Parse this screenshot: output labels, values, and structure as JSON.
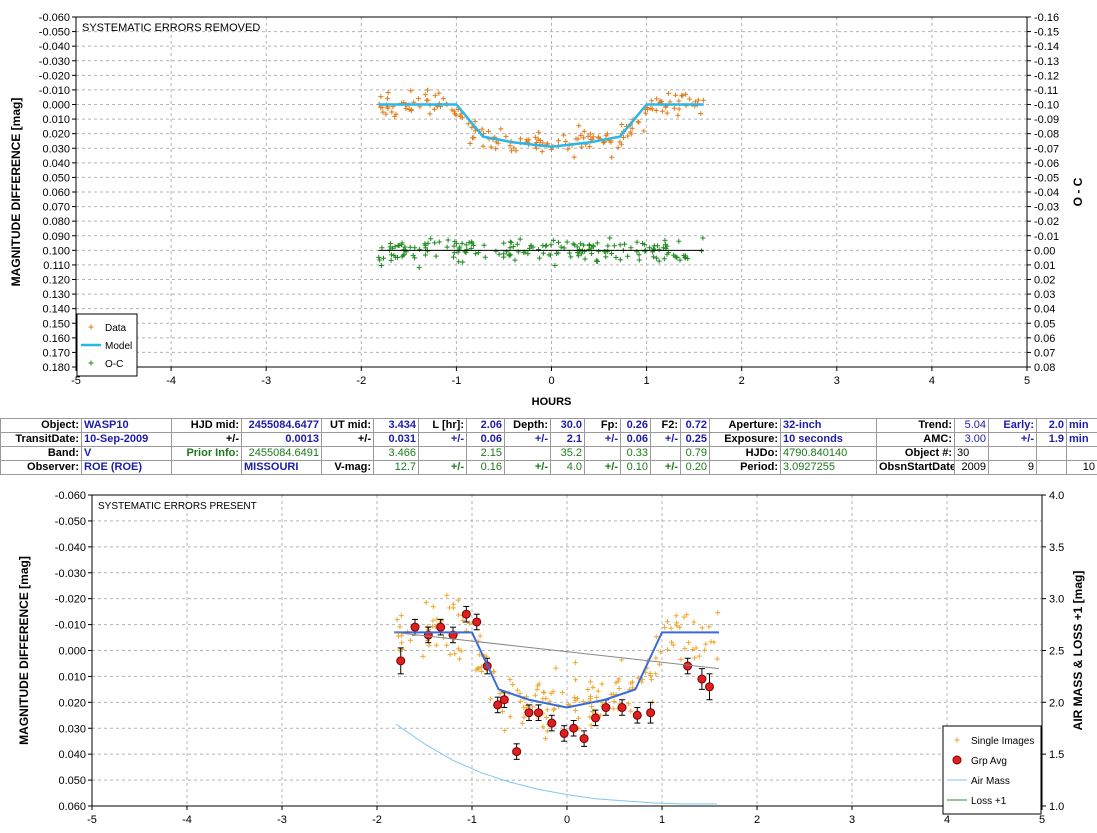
{
  "table": {
    "rows": [
      [
        {
          "t": "Object:",
          "c": "lbl"
        },
        {
          "t": "WASP10",
          "c": "blue bold"
        },
        {
          "t": "HJD mid:",
          "c": "lbl"
        },
        {
          "t": "2455084.6477",
          "c": "blue bold r"
        },
        {
          "t": "UT mid:",
          "c": "lbl"
        },
        {
          "t": "3.434",
          "c": "blue bold r"
        },
        {
          "t": "L [hr]:",
          "c": "lbl"
        },
        {
          "t": "2.06",
          "c": "blue bold r"
        },
        {
          "t": "Depth:",
          "c": "lbl"
        },
        {
          "t": "30.0",
          "c": "blue bold r"
        },
        {
          "t": "Fp:",
          "c": "lbl"
        },
        {
          "t": "0.26",
          "c": "blue bold r"
        },
        {
          "t": "F2:",
          "c": "lbl"
        },
        {
          "t": "0.72",
          "c": "blue bold r"
        },
        {
          "t": "Aperture:",
          "c": "lbl"
        },
        {
          "t": "32-inch",
          "c": "blue bold"
        },
        {
          "t": "Trend:",
          "c": "lbl"
        },
        {
          "t": "5.04",
          "c": "blue r"
        },
        {
          "t": "Early:",
          "c": "lbl blue"
        },
        {
          "t": "2.0",
          "c": "blue bold r"
        },
        {
          "t": "min",
          "c": "blue bold"
        }
      ],
      [
        {
          "t": "TransitDate:",
          "c": "lbl"
        },
        {
          "t": "10-Sep-2009",
          "c": "blue bold"
        },
        {
          "t": "+/-",
          "c": "lbl"
        },
        {
          "t": "0.0013",
          "c": "blue bold r"
        },
        {
          "t": "+/-",
          "c": "lbl"
        },
        {
          "t": "0.031",
          "c": "blue bold r"
        },
        {
          "t": "+/-",
          "c": "lbl blue"
        },
        {
          "t": "0.06",
          "c": "blue bold r"
        },
        {
          "t": "+/-",
          "c": "lbl blue"
        },
        {
          "t": "2.1",
          "c": "blue bold r"
        },
        {
          "t": "+/-",
          "c": "lbl blue"
        },
        {
          "t": "0.06",
          "c": "blue bold r"
        },
        {
          "t": "+/-",
          "c": "lbl blue"
        },
        {
          "t": "0.25",
          "c": "blue bold r"
        },
        {
          "t": "Exposure:",
          "c": "lbl"
        },
        {
          "t": "10 seconds",
          "c": "blue bold"
        },
        {
          "t": "AMC:",
          "c": "lbl"
        },
        {
          "t": "3.00",
          "c": "blue r"
        },
        {
          "t": "+/-",
          "c": "lbl blue"
        },
        {
          "t": "1.9",
          "c": "blue bold r"
        },
        {
          "t": "min",
          "c": "blue bold"
        }
      ],
      [
        {
          "t": "Band:",
          "c": "lbl"
        },
        {
          "t": "V",
          "c": "blue bold"
        },
        {
          "t": "Prior Info:",
          "c": "lbl green"
        },
        {
          "t": "2455084.6491",
          "c": "green r"
        },
        {
          "t": "",
          "c": ""
        },
        {
          "t": "3.466",
          "c": "green r"
        },
        {
          "t": "",
          "c": ""
        },
        {
          "t": "2.15",
          "c": "green r"
        },
        {
          "t": "",
          "c": ""
        },
        {
          "t": "35.2",
          "c": "green r"
        },
        {
          "t": "",
          "c": ""
        },
        {
          "t": "0.33",
          "c": "green r"
        },
        {
          "t": "",
          "c": ""
        },
        {
          "t": "0.79",
          "c": "green r"
        },
        {
          "t": "HJDo:",
          "c": "lbl"
        },
        {
          "t": "4790.840140",
          "c": "green"
        },
        {
          "t": "Object #:",
          "c": "lbl"
        },
        {
          "t": "30",
          "c": ""
        },
        {
          "t": "",
          "c": ""
        },
        {
          "t": "",
          "c": ""
        },
        {
          "t": "",
          "c": ""
        }
      ],
      [
        {
          "t": "Observer:",
          "c": "lbl"
        },
        {
          "t": "ROE (ROE)",
          "c": "blue bold"
        },
        {
          "t": "",
          "c": ""
        },
        {
          "t": "MISSOURI",
          "c": "blue bold"
        },
        {
          "t": "V-mag:",
          "c": "lbl"
        },
        {
          "t": "12.7",
          "c": "green r"
        },
        {
          "t": "+/-",
          "c": "lbl green"
        },
        {
          "t": "0.16",
          "c": "green r"
        },
        {
          "t": "+/-",
          "c": "lbl green"
        },
        {
          "t": "4.0",
          "c": "green r"
        },
        {
          "t": "+/-",
          "c": "lbl green"
        },
        {
          "t": "0.10",
          "c": "green r"
        },
        {
          "t": "+/-",
          "c": "lbl green"
        },
        {
          "t": "0.20",
          "c": "green r"
        },
        {
          "t": "Period:",
          "c": "lbl"
        },
        {
          "t": "3.0927255",
          "c": "green"
        },
        {
          "t": "ObsnStartDate:",
          "c": "lbl"
        },
        {
          "t": "2009",
          "c": "r"
        },
        {
          "t": "9",
          "c": "r"
        },
        {
          "t": "",
          "c": ""
        },
        {
          "t": "10",
          "c": "r"
        }
      ]
    ]
  },
  "chart_data": [
    {
      "type": "scatter",
      "title": "SYSTEMATIC ERRORS REMOVED",
      "xlabel": "HOURS",
      "ylabel": "MAGNITUDE DIFFERENCE [mag]",
      "y2label": "O - C",
      "xlim": [
        -5,
        5
      ],
      "ylim": [
        -0.06,
        0.18
      ],
      "y_inverted": true,
      "y2lim": [
        -0.16,
        0.08
      ],
      "xticks": [
        "-5",
        "-4",
        "-3",
        "-2",
        "-1",
        "0",
        "1",
        "2",
        "3",
        "4",
        "5"
      ],
      "yticks": [
        "-0.060",
        "-0.050",
        "-0.040",
        "-0.030",
        "-0.020",
        "-0.010",
        "0.000",
        "0.010",
        "0.020",
        "0.030",
        "0.040",
        "0.050",
        "0.060",
        "0.070",
        "0.080",
        "0.090",
        "0.100",
        "0.110",
        "0.120",
        "0.130",
        "0.140",
        "0.150",
        "0.160",
        "0.170",
        "0.180"
      ],
      "y2ticks": [
        "-0.16",
        "-0.15",
        "-0.14",
        "-0.13",
        "-0.12",
        "-0.11",
        "-0.10",
        "-0.09",
        "-0.08",
        "-0.07",
        "-0.06",
        "-0.05",
        "-0.04",
        "-0.03",
        "-0.02",
        "-0.01",
        "0.00",
        "0.01",
        "0.02",
        "0.03",
        "0.04",
        "0.05",
        "0.06",
        "0.07",
        "0.08"
      ],
      "grid": true,
      "legend_position": "bottom-left",
      "series": [
        {
          "name": "Data",
          "kind": "plus",
          "color": "#e07b1a",
          "transit": true,
          "y_offset": 0,
          "scatter": 0.0085,
          "seed": 7,
          "n": 190
        },
        {
          "name": "Model",
          "kind": "line",
          "color": "#29b6e8",
          "x": [
            -1.82,
            -1.0,
            -0.72,
            -0.4,
            0.0,
            0.4,
            0.72,
            1.0,
            1.1,
            1.6
          ],
          "y": [
            0.0,
            0.0,
            0.022,
            0.026,
            0.029,
            0.026,
            0.022,
            0.0,
            0.0,
            0.0
          ]
        },
        {
          "name": "O-C",
          "kind": "plus",
          "color": "#1f8a1f",
          "transit": false,
          "y_offset": 0.1,
          "scatter": 0.0085,
          "seed": 23,
          "n": 190
        },
        {
          "name": "",
          "kind": "line",
          "color": "#000000",
          "x": [
            -1.82,
            1.6
          ],
          "y": [
            0.1,
            0.1
          ]
        }
      ]
    },
    {
      "type": "scatter",
      "title": "SYSTEMATIC ERRORS PRESENT",
      "xlabel": "",
      "ylabel": "MAGNITUDE DIFFERENCE [mag]",
      "y2label": "AIR MASS & LOSS +1 [mag]",
      "xlim": [
        -5,
        5
      ],
      "ylim": [
        -0.06,
        0.06
      ],
      "y_inverted": true,
      "y2lim": [
        1.0,
        4.0
      ],
      "xticks": [
        "-5",
        "-4",
        "-3",
        "-2",
        "-1",
        "0",
        "1",
        "2",
        "3",
        "4",
        "5"
      ],
      "yticks": [
        "-0.060",
        "-0.050",
        "-0.040",
        "-0.030",
        "-0.020",
        "-0.010",
        "0.000",
        "0.010",
        "0.020",
        "0.030",
        "0.040",
        "0.050",
        "0.060"
      ],
      "y2ticks": [
        "4.0",
        "3.5",
        "3.0",
        "2.5",
        "2.0",
        "1.5",
        "1.0"
      ],
      "grid": true,
      "legend_position": "bottom-right",
      "series": [
        {
          "name": "Single Images",
          "kind": "plus",
          "color": "#f0a830",
          "transit": true,
          "y_offset": -0.007,
          "scatter": 0.011,
          "seed": 41,
          "n": 200
        },
        {
          "name": "Grp Avg",
          "kind": "errorbar",
          "color": "#e02020",
          "x": [
            -1.75,
            -1.6,
            -1.46,
            -1.33,
            -1.2,
            -1.06,
            -0.95,
            -0.84,
            -0.73,
            -0.66,
            -0.53,
            -0.4,
            -0.3,
            -0.16,
            -0.03,
            0.07,
            0.18,
            0.3,
            0.41,
            0.58,
            0.74,
            0.88,
            1.27,
            1.42,
            1.5
          ],
          "y": [
            0.004,
            -0.009,
            -0.006,
            -0.009,
            -0.006,
            -0.014,
            -0.011,
            0.006,
            0.021,
            0.019,
            0.039,
            0.024,
            0.024,
            0.028,
            0.032,
            0.03,
            0.034,
            0.026,
            0.022,
            0.022,
            0.025,
            0.024,
            0.006,
            0.011,
            0.014
          ],
          "err": [
            0.005,
            0.003,
            0.003,
            0.003,
            0.003,
            0.003,
            0.003,
            0.003,
            0.003,
            0.003,
            0.003,
            0.003,
            0.003,
            0.003,
            0.003,
            0.003,
            0.003,
            0.003,
            0.003,
            0.003,
            0.003,
            0.004,
            0.003,
            0.004,
            0.005
          ]
        },
        {
          "name": "",
          "kind": "line",
          "color": "#3a6ad8",
          "x": [
            -1.82,
            -1.0,
            -0.72,
            -0.4,
            0.0,
            0.4,
            0.72,
            1.0,
            1.1,
            1.6
          ],
          "y": [
            -0.007,
            -0.007,
            0.015,
            0.019,
            0.022,
            0.019,
            0.015,
            -0.007,
            -0.007,
            -0.007
          ]
        },
        {
          "name": "",
          "kind": "line",
          "color": "#888888",
          "x": [
            -1.82,
            1.6
          ],
          "y": [
            -0.007,
            0.007
          ]
        },
        {
          "name": "Air Mass",
          "kind": "line2",
          "color": "#7fc8f0",
          "x": [
            -1.8,
            -1.5,
            -1.2,
            -0.9,
            -0.6,
            -0.3,
            0.0,
            0.3,
            0.6,
            0.9,
            1.2,
            1.58
          ],
          "y": [
            1.79,
            1.6,
            1.44,
            1.32,
            1.23,
            1.16,
            1.11,
            1.07,
            1.05,
            1.03,
            1.02,
            1.02
          ]
        },
        {
          "name": "Loss +1",
          "kind": "legend-only",
          "color": "#2e8b2e"
        }
      ]
    }
  ]
}
